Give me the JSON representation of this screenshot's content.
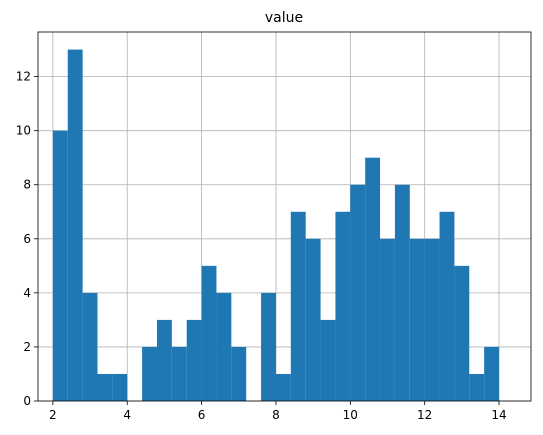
{
  "chart_data": {
    "type": "bar",
    "title": "value",
    "xlabel": "",
    "ylabel": "",
    "xlim": [
      1.6,
      14.86
    ],
    "ylim": [
      0,
      13.65
    ],
    "xticks": [
      2,
      4,
      6,
      8,
      10,
      12,
      14
    ],
    "yticks": [
      0,
      2,
      4,
      6,
      8,
      10,
      12
    ],
    "grid": true,
    "bar_color": "#1f77b4",
    "bin_start": 2.0,
    "bin_width": 0.4,
    "values": [
      10,
      13,
      4,
      1,
      1,
      0,
      2,
      3,
      2,
      3,
      5,
      4,
      2,
      0,
      4,
      1,
      7,
      6,
      3,
      7,
      8,
      9,
      6,
      8,
      6,
      6,
      7,
      5,
      1,
      2
    ]
  }
}
